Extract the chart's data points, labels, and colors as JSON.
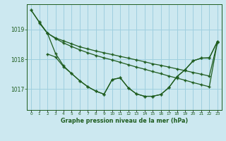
{
  "bg_color": "#cce8f0",
  "grid_color": "#9fcfdf",
  "line_color": "#1e5c1e",
  "title": "Graphe pression niveau de la mer (hPa)",
  "xlim": [
    -0.5,
    23.5
  ],
  "ylim": [
    1016.3,
    1019.85
  ],
  "yticks": [
    1017,
    1018,
    1019
  ],
  "xtick_labels": [
    "0",
    "1",
    "2",
    "3",
    "4",
    "5",
    "6",
    "7",
    "8",
    "9",
    "10",
    "11",
    "12",
    "13",
    "14",
    "15",
    "16",
    "17",
    "18",
    "19",
    "20",
    "21",
    "22",
    "23"
  ],
  "s1_x": [
    0,
    1,
    2,
    3,
    4,
    5,
    6,
    7,
    8,
    9,
    10,
    11,
    12,
    13,
    14,
    15,
    16,
    17,
    18,
    19,
    20,
    21,
    22,
    23
  ],
  "s1_y": [
    1019.65,
    1019.25,
    1018.88,
    1018.72,
    1018.62,
    1018.52,
    1018.42,
    1018.35,
    1018.28,
    1018.22,
    1018.16,
    1018.1,
    1018.04,
    1017.98,
    1017.92,
    1017.85,
    1017.8,
    1017.74,
    1017.68,
    1017.62,
    1017.56,
    1017.5,
    1017.44,
    1018.58
  ],
  "s2_x": [
    0,
    1,
    2,
    3,
    4,
    5,
    6,
    7,
    8,
    9,
    10,
    11,
    12,
    13,
    14,
    15,
    16,
    17,
    18,
    19,
    20,
    21,
    22,
    23
  ],
  "s2_y": [
    1019.65,
    1019.25,
    1018.88,
    1018.7,
    1018.55,
    1018.43,
    1018.32,
    1018.22,
    1018.13,
    1018.05,
    1017.98,
    1017.9,
    1017.82,
    1017.74,
    1017.67,
    1017.59,
    1017.52,
    1017.44,
    1017.37,
    1017.3,
    1017.22,
    1017.15,
    1017.08,
    1018.58
  ],
  "s3_x": [
    2,
    3,
    4,
    5,
    6,
    7,
    8,
    9,
    10,
    11,
    12,
    13,
    14,
    15,
    16,
    17,
    18,
    19,
    20,
    21,
    22,
    23
  ],
  "s3_y": [
    1018.18,
    1018.08,
    1017.75,
    1017.52,
    1017.28,
    1017.08,
    1016.93,
    1016.83,
    1017.32,
    1017.38,
    1017.04,
    1016.84,
    1016.76,
    1016.76,
    1016.82,
    1017.05,
    1017.42,
    1017.65,
    1017.95,
    1018.04,
    1018.05,
    1018.6
  ],
  "s4_x": [
    1,
    2,
    3,
    4,
    5,
    6,
    7,
    8,
    9,
    10,
    11,
    12,
    13,
    14,
    15,
    16,
    17,
    18,
    19,
    20,
    21,
    22,
    23
  ],
  "s4_y": [
    1019.22,
    1018.88,
    1018.2,
    1017.78,
    1017.52,
    1017.28,
    1017.08,
    1016.93,
    1016.83,
    1017.32,
    1017.38,
    1017.04,
    1016.84,
    1016.76,
    1016.76,
    1016.82,
    1017.05,
    1017.42,
    1017.65,
    1017.95,
    1018.04,
    1018.05,
    1018.6
  ]
}
